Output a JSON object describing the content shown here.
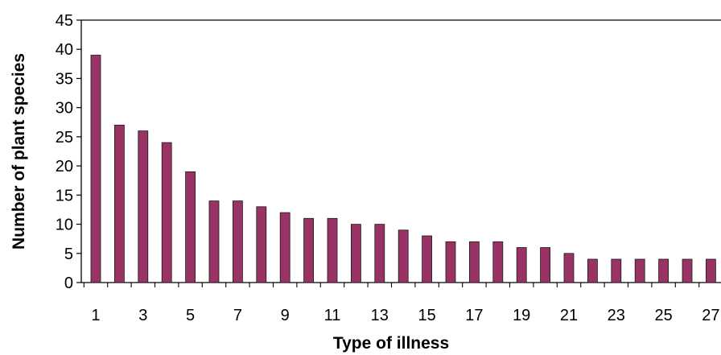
{
  "chart_data": {
    "type": "bar",
    "title": "",
    "xlabel": "Type of illness",
    "ylabel": "Number of plant species",
    "categories": [
      "1",
      "2",
      "3",
      "4",
      "5",
      "6",
      "7",
      "8",
      "9",
      "10",
      "11",
      "12",
      "13",
      "14",
      "15",
      "16",
      "17",
      "18",
      "19",
      "20",
      "21",
      "22",
      "23",
      "24",
      "25",
      "26",
      "27"
    ],
    "x_tick_labels": [
      "1",
      "3",
      "5",
      "7",
      "9",
      "11",
      "13",
      "15",
      "17",
      "19",
      "21",
      "23",
      "25",
      "27"
    ],
    "y_tick_labels": [
      "0",
      "5",
      "10",
      "15",
      "20",
      "25",
      "30",
      "35",
      "40",
      "45"
    ],
    "values": [
      39,
      27,
      26,
      24,
      19,
      14,
      14,
      13,
      12,
      11,
      11,
      10,
      10,
      9,
      8,
      7,
      7,
      7,
      6,
      6,
      5,
      4,
      4,
      4,
      4,
      4,
      4
    ],
    "ylim": [
      0,
      45
    ],
    "grid": false,
    "legend": "none",
    "colors": {
      "bar_fill": "#993366",
      "bar_stroke": "#1a1a1a",
      "axis": "#000000"
    }
  }
}
